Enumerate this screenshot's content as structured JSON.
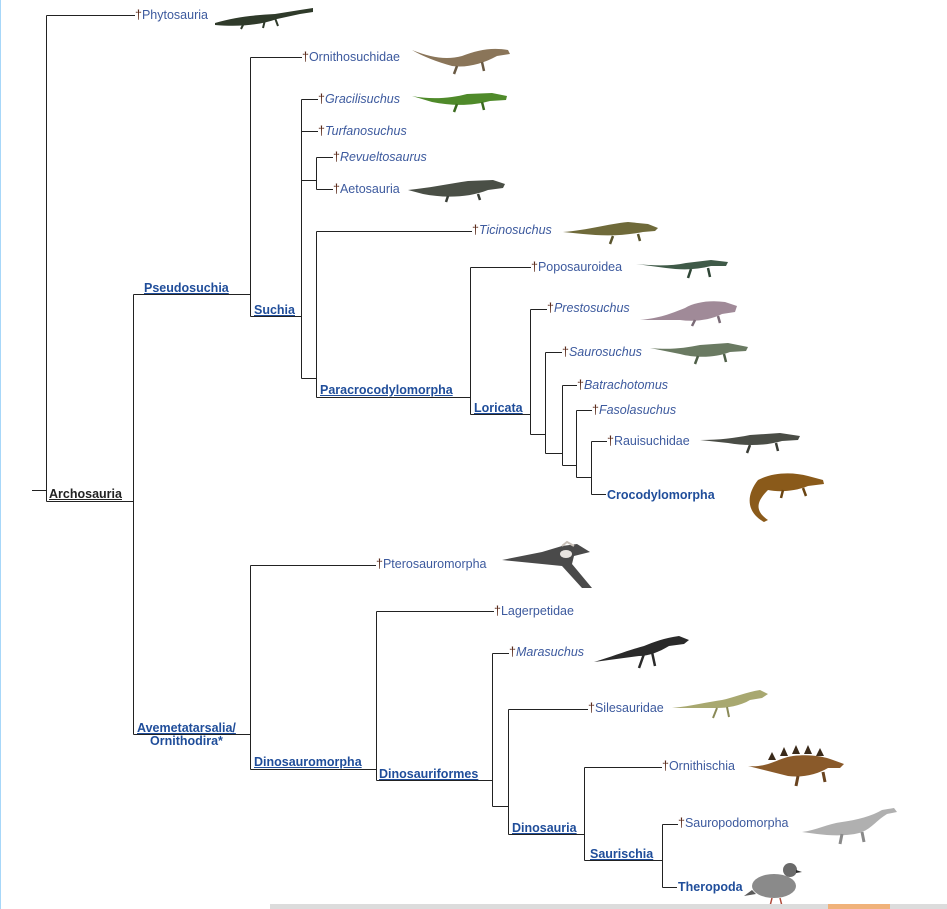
{
  "dagger": "†",
  "clades": {
    "archosauria": "Archosauria",
    "pseudosuchia": "Pseudosuchia",
    "suchia": "Suchia",
    "paracrocodylomorpha": "Paracrocodylomorpha",
    "loricata": "Loricata",
    "avemetatarsalia_1": "Avemetatarsalia/",
    "avemetatarsalia_2": "Ornithodira*",
    "dinosauromorpha": "Dinosauromorpha",
    "dinosauriformes": "Dinosauriformes",
    "dinosauria": "Dinosauria",
    "saurischia": "Saurischia"
  },
  "taxa": {
    "phytosauria": "Phytosauria",
    "ornithosuchidae": "Ornithosuchidae",
    "gracilisuchus": "Gracilisuchus",
    "turfanosuchus": "Turfanosuchus",
    "revueltosaurus": "Revueltosaurus",
    "aetosauria": "Aetosauria",
    "ticinosuchus": "Ticinosuchus",
    "poposauroidea": "Poposauroidea",
    "prestosuchus": "Prestosuchus",
    "saurosuchus": "Saurosuchus",
    "batrachotomus": "Batrachotomus",
    "fasolasuchus": "Fasolasuchus",
    "rauisuchidae": "Rauisuchidae",
    "crocodylomorpha": "Crocodylomorpha",
    "pterosauromorpha": "Pterosauromorpha",
    "lagerpetidae": "Lagerpetidae",
    "marasuchus": "Marasuchus",
    "silesauridae": "Silesauridae",
    "ornithischia": "Ornithischia",
    "sauropodomorpha": "Sauropodomorpha",
    "theropoda": "Theropoda"
  },
  "colors": {
    "link": "#3d5a9e",
    "clade": "#1f4d9a",
    "dagger": "#5a2a1a",
    "line": "#222222"
  }
}
